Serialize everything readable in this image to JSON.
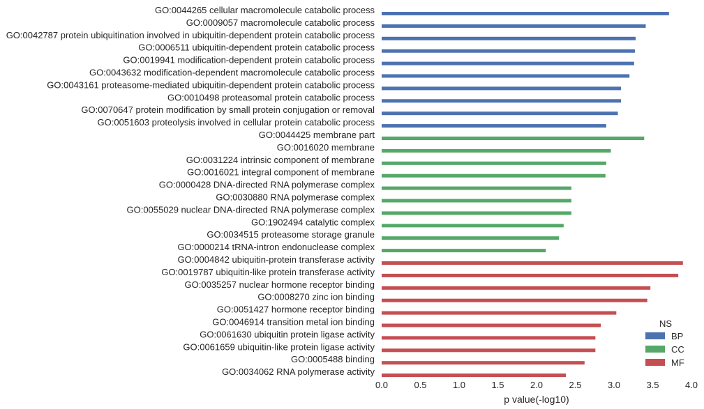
{
  "chart_data": {
    "type": "bar",
    "orientation": "horizontal",
    "categories": [
      "GO:0044265 cellular macromolecule catabolic process",
      "GO:0009057 macromolecule catabolic process",
      "GO:0042787 protein ubiquitination involved in ubiquitin-dependent protein catabolic process",
      "GO:0006511 ubiquitin-dependent protein catabolic process",
      "GO:0019941 modification-dependent protein catabolic process",
      "GO:0043632 modification-dependent macromolecule catabolic process",
      "GO:0043161 proteasome-mediated ubiquitin-dependent protein catabolic process",
      "GO:0010498 proteasomal protein catabolic process",
      "GO:0070647 protein modification by small protein conjugation or removal",
      "GO:0051603 proteolysis involved in cellular protein catabolic process",
      "GO:0044425 membrane part",
      "GO:0016020 membrane",
      "GO:0031224 intrinsic component of membrane",
      "GO:0016021 integral component of membrane",
      "GO:0000428 DNA-directed RNA polymerase complex",
      "GO:0030880 RNA polymerase complex",
      "GO:0055029 nuclear DNA-directed RNA polymerase complex",
      "GO:1902494 catalytic complex",
      "GO:0034515 proteasome storage granule",
      "GO:0000214 tRNA-intron endonuclease complex",
      "GO:0004842 ubiquitin-protein transferase activity",
      "GO:0019787 ubiquitin-like protein transferase activity",
      "GO:0035257 nuclear hormone receptor binding",
      "GO:0008270 zinc ion binding",
      "GO:0051427 hormone receptor binding",
      "GO:0046914 transition metal ion binding",
      "GO:0061630 ubiquitin protein ligase activity",
      "GO:0061659 ubiquitin-like protein ligase activity",
      "GO:0005488 binding",
      "GO:0034062 RNA polymerase activity"
    ],
    "series": [
      {
        "name": "BP",
        "color": "#4C72B0",
        "values": [
          3.71,
          3.41,
          3.28,
          3.27,
          3.26,
          3.2,
          3.09,
          3.09,
          3.05,
          2.9,
          null,
          null,
          null,
          null,
          null,
          null,
          null,
          null,
          null,
          null,
          null,
          null,
          null,
          null,
          null,
          null,
          null,
          null,
          null,
          null
        ]
      },
      {
        "name": "CC",
        "color": "#55A868",
        "values": [
          null,
          null,
          null,
          null,
          null,
          null,
          null,
          null,
          null,
          null,
          3.39,
          2.96,
          2.9,
          2.89,
          2.45,
          2.45,
          2.45,
          2.35,
          2.29,
          2.12,
          null,
          null,
          null,
          null,
          null,
          null,
          null,
          null,
          null,
          null
        ]
      },
      {
        "name": "MF",
        "color": "#C44E52",
        "values": [
          null,
          null,
          null,
          null,
          null,
          null,
          null,
          null,
          null,
          null,
          null,
          null,
          null,
          null,
          null,
          null,
          null,
          null,
          null,
          null,
          3.89,
          3.83,
          3.47,
          3.43,
          3.03,
          2.83,
          2.76,
          2.76,
          2.62,
          2.38
        ]
      }
    ],
    "xlabel": "p value(-log10)",
    "ylabel": "",
    "xlim": [
      0.0,
      4.0
    ],
    "xticks": [
      "0.0",
      "0.5",
      "1.0",
      "1.5",
      "2.0",
      "2.5",
      "3.0",
      "3.5",
      "4.0"
    ],
    "grid": false,
    "legend": {
      "title": "NS",
      "position": "bottom-right",
      "entries": [
        "BP",
        "CC",
        "MF"
      ]
    }
  }
}
